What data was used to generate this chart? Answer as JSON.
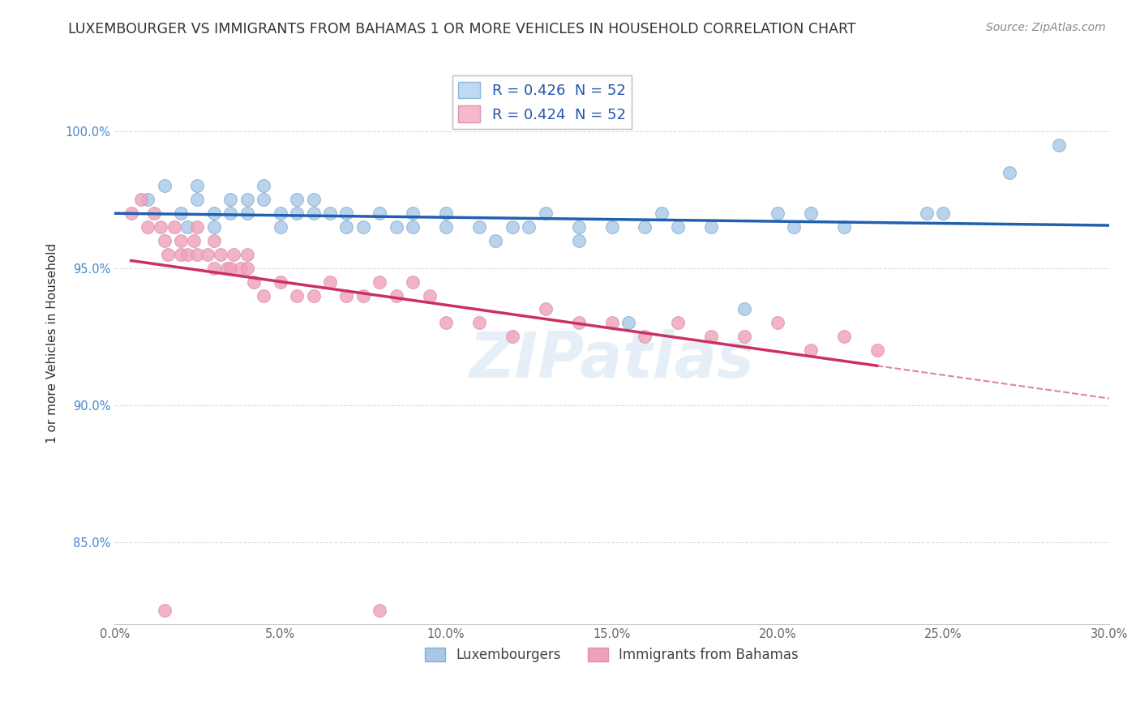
{
  "title": "LUXEMBOURGER VS IMMIGRANTS FROM BAHAMAS 1 OR MORE VEHICLES IN HOUSEHOLD CORRELATION CHART",
  "source": "Source: ZipAtlas.com",
  "ylabel": "1 or more Vehicles in Household",
  "xlim": [
    0.0,
    0.3
  ],
  "ylim": [
    0.82,
    1.025
  ],
  "ytick_labels": [
    "85.0%",
    "90.0%",
    "95.0%",
    "100.0%"
  ],
  "ytick_values": [
    0.85,
    0.9,
    0.95,
    1.0
  ],
  "xtick_labels": [
    "0.0%",
    "5.0%",
    "10.0%",
    "15.0%",
    "20.0%",
    "25.0%",
    "30.0%"
  ],
  "xtick_values": [
    0.0,
    0.05,
    0.1,
    0.15,
    0.2,
    0.25,
    0.3
  ],
  "blue_R": 0.426,
  "blue_N": 52,
  "pink_R": 0.424,
  "pink_N": 52,
  "blue_color": "#a8c8e8",
  "pink_color": "#f0a0b8",
  "blue_edge_color": "#88b0d0",
  "pink_edge_color": "#d898b0",
  "blue_line_color": "#2060b0",
  "pink_line_color": "#cc3060",
  "blue_scatter_x": [
    0.01,
    0.015,
    0.02,
    0.022,
    0.025,
    0.025,
    0.03,
    0.03,
    0.035,
    0.035,
    0.04,
    0.04,
    0.045,
    0.045,
    0.05,
    0.05,
    0.055,
    0.055,
    0.06,
    0.06,
    0.065,
    0.07,
    0.07,
    0.075,
    0.08,
    0.085,
    0.09,
    0.09,
    0.1,
    0.1,
    0.11,
    0.115,
    0.12,
    0.125,
    0.13,
    0.14,
    0.14,
    0.15,
    0.155,
    0.16,
    0.165,
    0.17,
    0.18,
    0.19,
    0.2,
    0.205,
    0.21,
    0.22,
    0.245,
    0.25,
    0.27,
    0.285
  ],
  "blue_scatter_y": [
    0.975,
    0.98,
    0.97,
    0.965,
    0.98,
    0.975,
    0.97,
    0.965,
    0.975,
    0.97,
    0.975,
    0.97,
    0.975,
    0.98,
    0.97,
    0.965,
    0.975,
    0.97,
    0.975,
    0.97,
    0.97,
    0.97,
    0.965,
    0.965,
    0.97,
    0.965,
    0.965,
    0.97,
    0.965,
    0.97,
    0.965,
    0.96,
    0.965,
    0.965,
    0.97,
    0.965,
    0.96,
    0.965,
    0.93,
    0.965,
    0.97,
    0.965,
    0.965,
    0.935,
    0.97,
    0.965,
    0.97,
    0.965,
    0.97,
    0.97,
    0.985,
    0.995
  ],
  "pink_scatter_x": [
    0.005,
    0.008,
    0.01,
    0.012,
    0.014,
    0.015,
    0.016,
    0.018,
    0.02,
    0.02,
    0.022,
    0.024,
    0.025,
    0.025,
    0.028,
    0.03,
    0.03,
    0.032,
    0.034,
    0.035,
    0.036,
    0.038,
    0.04,
    0.04,
    0.042,
    0.045,
    0.05,
    0.055,
    0.06,
    0.065,
    0.07,
    0.075,
    0.08,
    0.085,
    0.09,
    0.095,
    0.1,
    0.11,
    0.12,
    0.13,
    0.14,
    0.15,
    0.16,
    0.17,
    0.18,
    0.19,
    0.2,
    0.21,
    0.22,
    0.23,
    0.015,
    0.08
  ],
  "pink_scatter_y": [
    0.97,
    0.975,
    0.965,
    0.97,
    0.965,
    0.96,
    0.955,
    0.965,
    0.96,
    0.955,
    0.955,
    0.96,
    0.955,
    0.965,
    0.955,
    0.96,
    0.95,
    0.955,
    0.95,
    0.95,
    0.955,
    0.95,
    0.95,
    0.955,
    0.945,
    0.94,
    0.945,
    0.94,
    0.94,
    0.945,
    0.94,
    0.94,
    0.945,
    0.94,
    0.945,
    0.94,
    0.93,
    0.93,
    0.925,
    0.935,
    0.93,
    0.93,
    0.925,
    0.93,
    0.925,
    0.925,
    0.93,
    0.92,
    0.925,
    0.92,
    0.825,
    0.825
  ],
  "background_color": "#ffffff",
  "grid_color": "#dddddd",
  "watermark": "ZIPatlas",
  "title_fontsize": 12.5,
  "axis_label_fontsize": 11,
  "tick_fontsize": 10.5,
  "legend_fontsize": 13,
  "source_fontsize": 10
}
